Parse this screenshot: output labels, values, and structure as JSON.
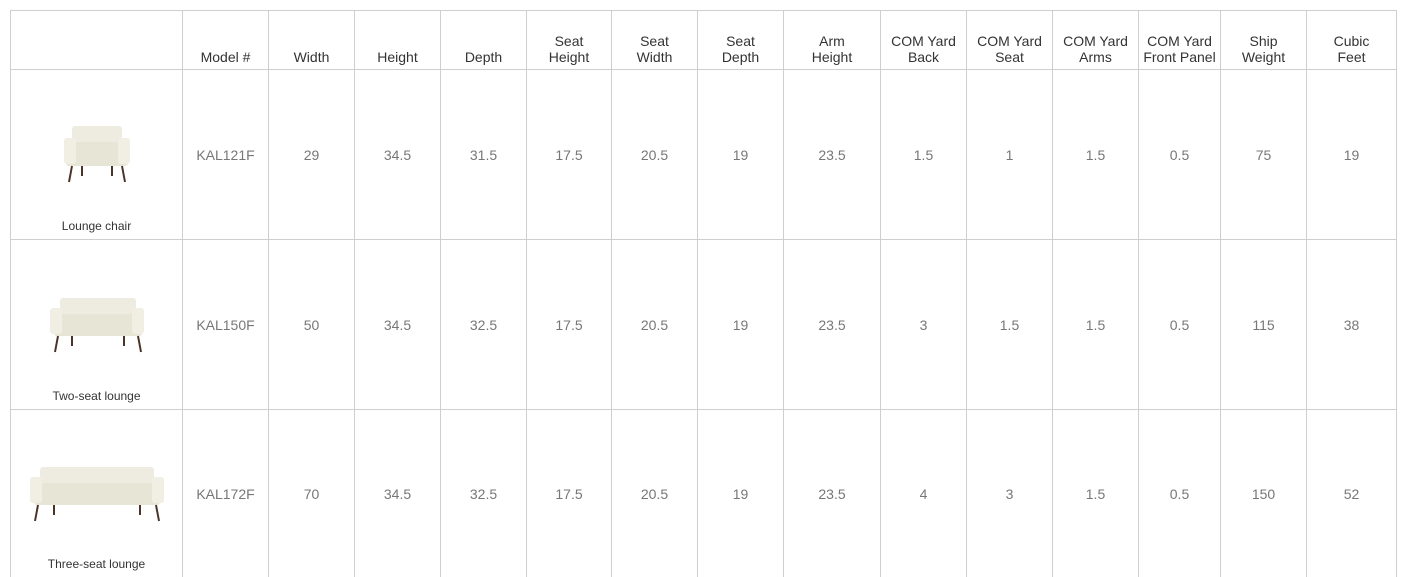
{
  "table": {
    "columns": [
      "Model #",
      "Width",
      "Height",
      "Depth",
      "Seat\nHeight",
      "Seat\nWidth",
      "Seat\nDepth",
      "Arm\nHeight",
      "COM Yard\nBack",
      "COM Yard\nSeat",
      "COM Yard\nArms",
      "COM Yard\nFront Panel",
      "Ship\nWeight",
      "Cubic\nFeet"
    ],
    "rows": [
      {
        "name": "Lounge chair",
        "model": "KAL121F",
        "values": [
          29,
          34.5,
          31.5,
          17.5,
          20.5,
          19,
          23.5,
          1.5,
          1,
          1.5,
          0.5,
          75,
          19
        ]
      },
      {
        "name": "Two-seat lounge",
        "model": "KAL150F",
        "values": [
          50,
          34.5,
          32.5,
          17.5,
          20.5,
          19,
          23.5,
          3,
          1.5,
          1.5,
          0.5,
          115,
          38
        ]
      },
      {
        "name": "Three-seat lounge",
        "model": "KAL172F",
        "values": [
          70,
          34.5,
          32.5,
          17.5,
          20.5,
          19,
          23.5,
          4,
          3,
          1.5,
          0.5,
          150,
          52
        ]
      }
    ]
  }
}
